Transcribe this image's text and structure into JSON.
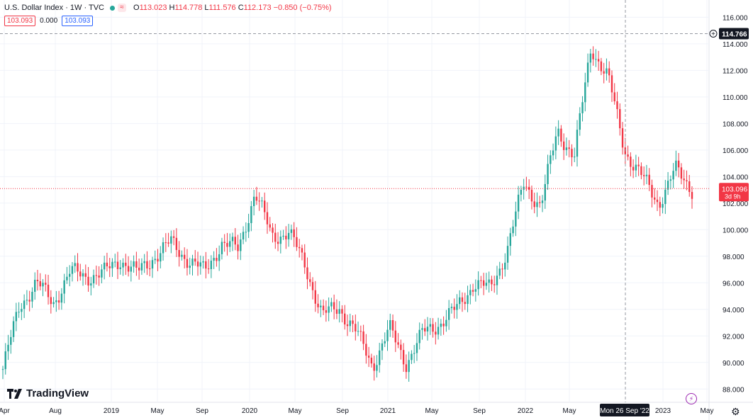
{
  "header": {
    "title": "U.S. Dollar Index · 1W · TVC",
    "open_label": "O",
    "open": "113.023",
    "high_label": "H",
    "high": "114.778",
    "low_label": "L",
    "low": "111.576",
    "close_label": "C",
    "close": "112.173",
    "change": "−0.850 (−0.75%)",
    "ind_value_1": "103.093",
    "ind_value_2": "0.000",
    "ind_value_3": "103.093"
  },
  "crosshair": {
    "price": "114.766",
    "date": "Mon 26 Sep '22"
  },
  "last_price": {
    "value": "103.096",
    "countdown": "3d 9h"
  },
  "brand": "TradingView",
  "colors": {
    "up": "#26a69a",
    "down": "#f23645",
    "grid": "#f0f3fa",
    "axis_text": "#131722"
  },
  "chart_data": {
    "type": "candlestick",
    "interval": "1W",
    "y_ticks": [
      "88.000",
      "90.000",
      "92.000",
      "94.000",
      "96.000",
      "98.000",
      "100.000",
      "102.000",
      "104.000",
      "106.000",
      "108.000",
      "110.000",
      "112.000",
      "114.000",
      "116.000"
    ],
    "ylim": [
      87,
      117.3
    ],
    "x_ticks": [
      "Apr",
      "Aug",
      "2019",
      "May",
      "Sep",
      "2020",
      "May",
      "Sep",
      "2021",
      "May",
      "Sep",
      "2022",
      "May",
      "2023",
      "May"
    ],
    "price_path": [
      [
        "Apr 2018",
        89.5
      ],
      [
        "Jun 2018",
        94.3
      ],
      [
        "Aug 2018",
        96.0
      ],
      [
        "Sep 2018",
        94.5
      ],
      [
        "Nov 2018",
        96.8
      ],
      [
        "Jan 2019",
        96.5
      ],
      [
        "Feb 2019",
        96.7
      ],
      [
        "Apr 2019",
        97.8
      ],
      [
        "Jun 2019",
        96.7
      ],
      [
        "Aug 2019",
        98.0
      ],
      [
        "Sep 2019",
        99.0
      ],
      [
        "Nov 2019",
        97.8
      ],
      [
        "Jan 2020",
        96.8
      ],
      [
        "Feb 2020",
        99.0
      ],
      [
        "Mar 2020",
        98.5
      ],
      [
        "Mar 2020",
        102.8
      ],
      [
        "Apr 2020",
        99.5
      ],
      [
        "May 2020",
        99.8
      ],
      [
        "Jun 2020",
        97.3
      ],
      [
        "Aug 2020",
        93.5
      ],
      [
        "Sep 2020",
        94.2
      ],
      [
        "Nov 2020",
        92.3
      ],
      [
        "Jan 2021",
        89.8
      ],
      [
        "Mar 2021",
        92.5
      ],
      [
        "May 2021",
        90.0
      ],
      [
        "Jun 2021",
        92.2
      ],
      [
        "Aug 2021",
        93.0
      ],
      [
        "Oct 2021",
        94.0
      ],
      [
        "Nov 2021",
        96.0
      ],
      [
        "Jan 2022",
        95.5
      ],
      [
        "Mar 2022",
        98.5
      ],
      [
        "May 2022",
        103.5
      ],
      [
        "May 2022",
        101.8
      ],
      [
        "Jul 2022",
        107.5
      ],
      [
        "Aug 2022",
        105.5
      ],
      [
        "Sep 2022",
        113.8
      ],
      [
        "Oct 2022",
        111.5
      ],
      [
        "Nov 2022",
        106.0
      ],
      [
        "Dec 2022",
        104.0
      ],
      [
        "Jan 2023",
        102.0
      ],
      [
        "Feb 2023",
        104.5
      ],
      [
        "Mar 2023",
        103.1
      ]
    ],
    "title": ""
  }
}
